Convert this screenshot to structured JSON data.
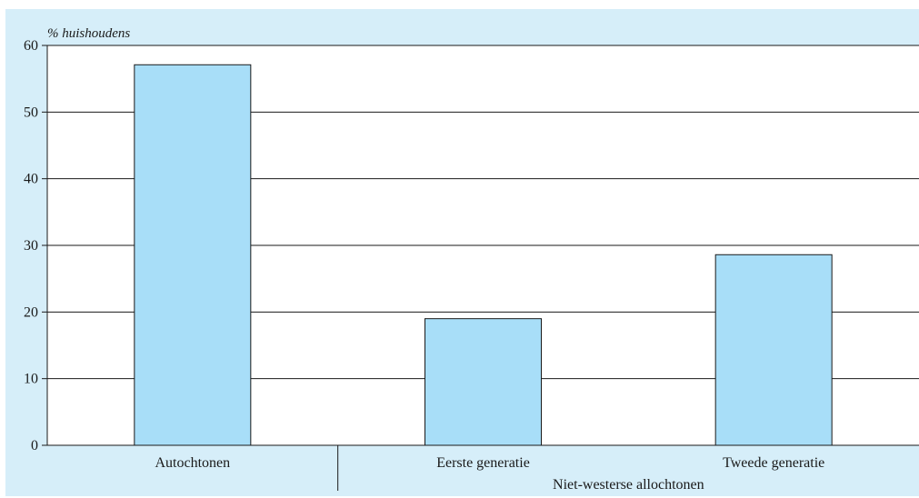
{
  "chart_data": {
    "type": "bar",
    "title": "",
    "ylabel": "% huishoudens",
    "xlabel": "",
    "ylim": [
      0,
      60
    ],
    "yticks": [
      0,
      10,
      20,
      30,
      40,
      50,
      60
    ],
    "grid": true,
    "categories": [
      "Autochtonen",
      "Eerste generatie",
      "Tweede generatie"
    ],
    "values": [
      57.1,
      19.0,
      28.6
    ],
    "group_label": "Niet-westerse allochtonen",
    "colors": {
      "background": "#d6eef9",
      "plot_area": "#ffffff",
      "bar_fill": "#a8def8",
      "bar_stroke": "#1a1a1a",
      "grid": "#1a1a1a"
    }
  }
}
